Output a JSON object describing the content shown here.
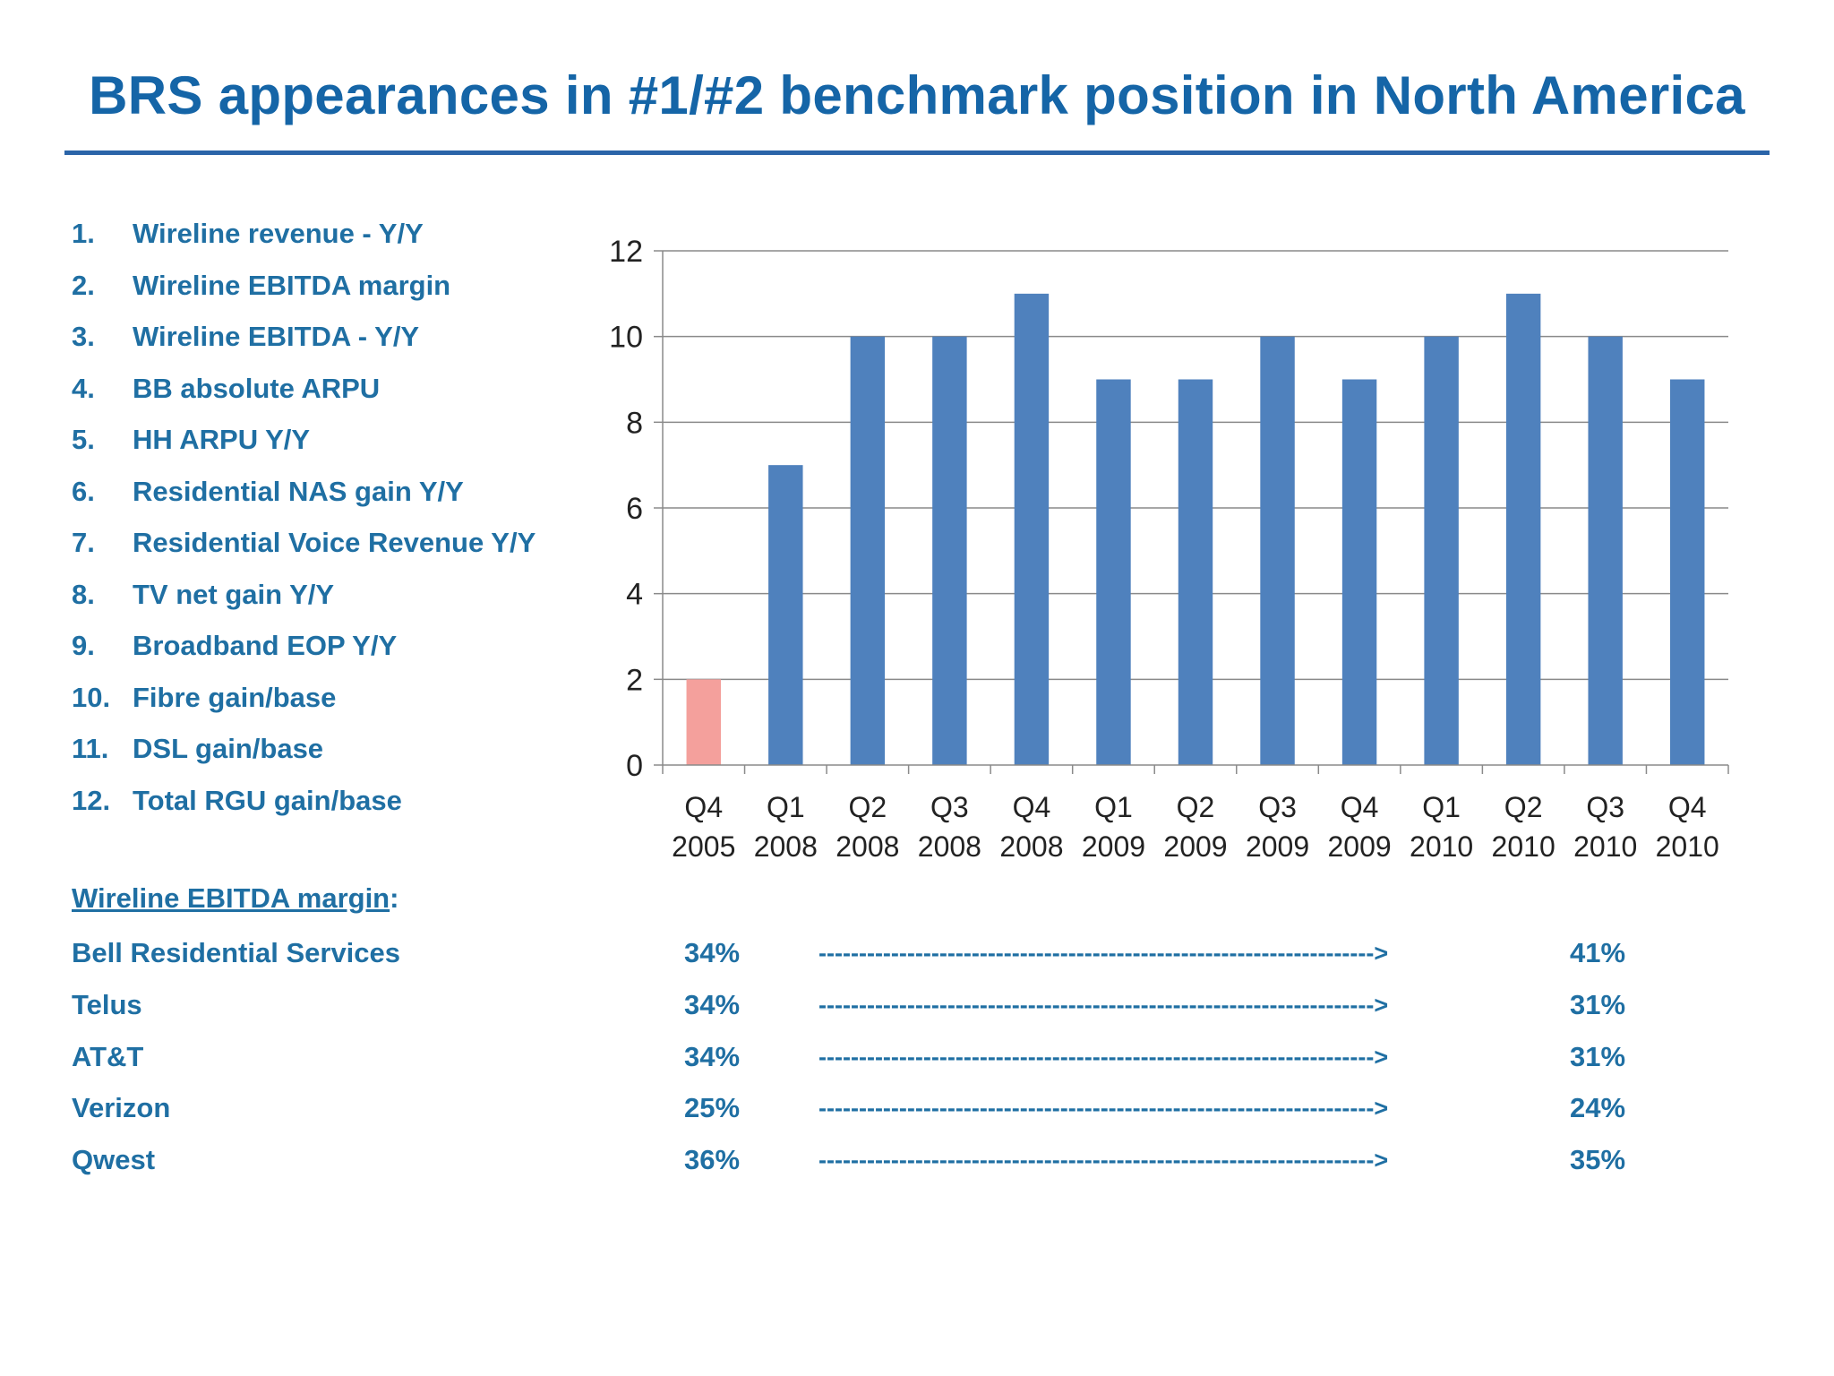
{
  "title": "BRS appearances in #1/#2 benchmark position in North America",
  "metrics": [
    {
      "num": "1.",
      "label": "Wireline revenue - Y/Y"
    },
    {
      "num": "2.",
      "label": "Wireline EBITDA margin"
    },
    {
      "num": "3.",
      "label": "Wireline EBITDA - Y/Y"
    },
    {
      "num": "4.",
      "label": "BB absolute ARPU"
    },
    {
      "num": "5.",
      "label": "HH ARPU Y/Y"
    },
    {
      "num": "6.",
      "label": "Residential NAS gain Y/Y"
    },
    {
      "num": "7.",
      "label": "Residential Voice Revenue Y/Y"
    },
    {
      "num": "8.",
      "label": "TV net gain Y/Y"
    },
    {
      "num": "9.",
      "label": "Broadband EOP Y/Y"
    },
    {
      "num": "10.",
      "label": "Fibre gain/base"
    },
    {
      "num": "11.",
      "label": "DSL gain/base"
    },
    {
      "num": "12.",
      "label": "Total RGU gain/base"
    }
  ],
  "chart_data": {
    "type": "bar",
    "categories": [
      [
        "Q4",
        "2005"
      ],
      [
        "Q1",
        "2008"
      ],
      [
        "Q2",
        "2008"
      ],
      [
        "Q3",
        "2008"
      ],
      [
        "Q4",
        "2008"
      ],
      [
        "Q1",
        "2009"
      ],
      [
        "Q2",
        "2009"
      ],
      [
        "Q3",
        "2009"
      ],
      [
        "Q4",
        "2009"
      ],
      [
        "Q1",
        "2010"
      ],
      [
        "Q2",
        "2010"
      ],
      [
        "Q3",
        "2010"
      ],
      [
        "Q4",
        "2010"
      ]
    ],
    "values": [
      2,
      7,
      10,
      10,
      11,
      9,
      9,
      10,
      9,
      10,
      11,
      10,
      9
    ],
    "bar_colors": [
      "#f4a09c",
      "#4f81bd",
      "#4f81bd",
      "#4f81bd",
      "#4f81bd",
      "#4f81bd",
      "#4f81bd",
      "#4f81bd",
      "#4f81bd",
      "#4f81bd",
      "#4f81bd",
      "#4f81bd",
      "#4f81bd"
    ],
    "ylim": [
      0,
      12
    ],
    "yticks": [
      0,
      2,
      4,
      6,
      8,
      10,
      12
    ],
    "grid": true,
    "title": "",
    "xlabel": "",
    "ylabel": ""
  },
  "margin_section": {
    "heading": "Wireline EBITDA margin",
    "heading_suffix": ":",
    "arrow": "--------------------------------------------------------------------->",
    "rows": [
      {
        "company": "Bell Residential Services",
        "start": "34%",
        "end": "41%"
      },
      {
        "company": "Telus",
        "start": "34%",
        "end": "31%"
      },
      {
        "company": "AT&T",
        "start": "34%",
        "end": "31%"
      },
      {
        "company": "Verizon",
        "start": "25%",
        "end": "24%"
      },
      {
        "company": "Qwest",
        "start": "36%",
        "end": "35%"
      }
    ]
  },
  "colors": {
    "title": "#1565a7",
    "text": "#1f6fa3",
    "rule": "#2a64a8",
    "bar_primary": "#4f81bd",
    "bar_highlight": "#f4a09c"
  }
}
